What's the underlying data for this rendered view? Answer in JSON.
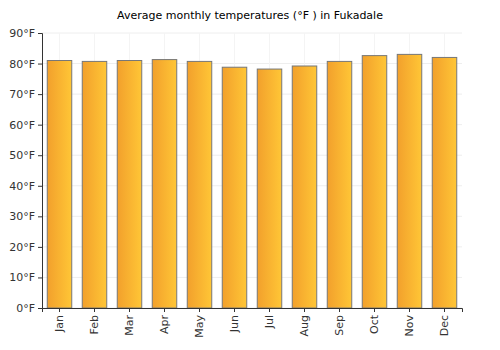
{
  "chart_data": {
    "type": "bar",
    "title": "Average monthly temperatures (°F ) in Fukadale",
    "categories": [
      "Jan",
      "Feb",
      "Mar",
      "Apr",
      "May",
      "Jun",
      "Jul",
      "Aug",
      "Sep",
      "Oct",
      "Nov",
      "Dec"
    ],
    "values": [
      81,
      80.7,
      81,
      81.3,
      80.7,
      78.8,
      78.2,
      79.2,
      80.7,
      82.6,
      83,
      82
    ],
    "color": "#ffa92e",
    "ylim": [
      0,
      90
    ],
    "yticks": [
      {
        "value": 0,
        "label": "0°F"
      },
      {
        "value": 10,
        "label": "10°F"
      },
      {
        "value": 20,
        "label": "20°F"
      },
      {
        "value": 30,
        "label": "30°F"
      },
      {
        "value": 40,
        "label": "40°F"
      },
      {
        "value": 50,
        "label": "50°F"
      },
      {
        "value": 60,
        "label": "60°F"
      },
      {
        "value": 70,
        "label": "70°F"
      },
      {
        "value": 80,
        "label": "80°F"
      },
      {
        "value": 90,
        "label": "90°F"
      }
    ],
    "grid": true
  }
}
